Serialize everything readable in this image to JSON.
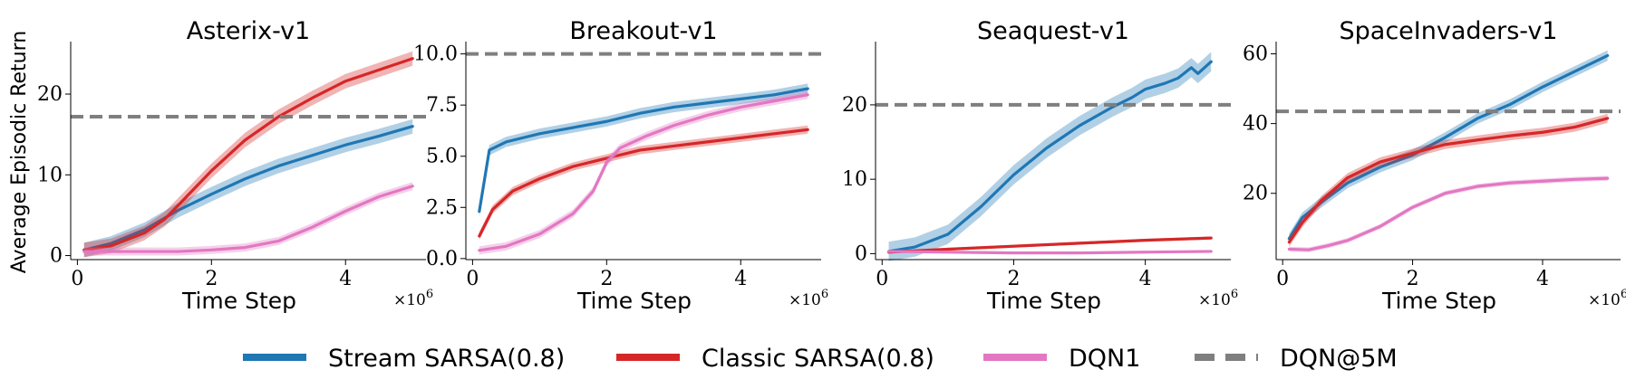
{
  "figure": {
    "ylabel": "Average Episodic Return",
    "xlabel": "Time Step",
    "x_multiplier_base": "×10",
    "x_multiplier_exp": "6"
  },
  "legend": [
    {
      "name": "Stream SARSA(0.8)",
      "color": "#1f77b4",
      "style": "solid"
    },
    {
      "name": "Classic SARSA(0.8)",
      "color": "#d62728",
      "style": "solid"
    },
    {
      "name": "DQN1",
      "color": "#e377c2",
      "style": "solid"
    },
    {
      "name": "DQN@5M",
      "color": "#7f7f7f",
      "style": "dashed"
    }
  ],
  "chart_data": [
    {
      "type": "line",
      "title": "Asterix-v1",
      "xlabel": "Time Step",
      "ylabel": "Average Episodic Return",
      "xlim": [
        -0.1,
        5.2
      ],
      "ylim": [
        -0.5,
        26.5
      ],
      "xticks": [
        0,
        2,
        4
      ],
      "xtick_labels": [
        "0",
        "2",
        "4"
      ],
      "yticks": [
        0,
        10,
        20
      ],
      "ytick_labels": [
        "0",
        "10",
        "20"
      ],
      "x_multiplier": "×10^6",
      "hline": {
        "name": "DQN@5M",
        "y": 17.2
      },
      "series": [
        {
          "name": "Stream SARSA(0.8)",
          "band": 0.9,
          "x": [
            0.1,
            0.5,
            1.0,
            1.5,
            2.0,
            2.5,
            3.0,
            3.5,
            4.0,
            4.5,
            5.0
          ],
          "y": [
            0.7,
            1.5,
            3.2,
            5.6,
            7.6,
            9.5,
            11.1,
            12.4,
            13.7,
            14.8,
            16.0
          ]
        },
        {
          "name": "Classic SARSA(0.8)",
          "band": 0.9,
          "x": [
            0.1,
            0.5,
            1.0,
            1.3,
            1.5,
            2.0,
            2.5,
            3.0,
            3.5,
            4.0,
            4.5,
            5.0
          ],
          "y": [
            0.7,
            1.2,
            2.8,
            4.5,
            6.2,
            10.5,
            14.3,
            17.2,
            19.5,
            21.6,
            23.0,
            24.4
          ]
        },
        {
          "name": "DQN1",
          "band": 0.5,
          "x": [
            0.1,
            0.5,
            1.0,
            1.5,
            2.0,
            2.5,
            3.0,
            3.5,
            4.0,
            4.5,
            5.0
          ],
          "y": [
            0.5,
            0.5,
            0.5,
            0.5,
            0.7,
            1.0,
            1.8,
            3.5,
            5.5,
            7.3,
            8.6
          ]
        }
      ]
    },
    {
      "type": "line",
      "title": "Breakout-v1",
      "xlabel": "Time Step",
      "ylabel": "",
      "xlim": [
        -0.1,
        5.2
      ],
      "ylim": [
        -0.05,
        10.6
      ],
      "xticks": [
        0,
        2,
        4
      ],
      "xtick_labels": [
        "0",
        "2",
        "4"
      ],
      "yticks": [
        0,
        2.5,
        5,
        7.5,
        10
      ],
      "ytick_labels": [
        "0.0",
        "2.5",
        "5.0",
        "7.5",
        "10.0"
      ],
      "x_multiplier": "×10^6",
      "hline": {
        "name": "DQN@5M",
        "y": 10.0
      },
      "series": [
        {
          "name": "Stream SARSA(0.8)",
          "band": 0.25,
          "x": [
            0.1,
            0.25,
            0.5,
            1.0,
            1.5,
            2.0,
            2.5,
            3.0,
            3.5,
            4.0,
            4.5,
            5.0
          ],
          "y": [
            2.3,
            5.3,
            5.7,
            6.1,
            6.4,
            6.7,
            7.1,
            7.4,
            7.6,
            7.8,
            8.0,
            8.3
          ]
        },
        {
          "name": "Classic SARSA(0.8)",
          "band": 0.2,
          "x": [
            0.1,
            0.3,
            0.6,
            1.0,
            1.5,
            2.0,
            2.5,
            3.0,
            3.5,
            4.0,
            4.5,
            5.0
          ],
          "y": [
            1.1,
            2.4,
            3.3,
            3.9,
            4.5,
            4.9,
            5.3,
            5.5,
            5.7,
            5.9,
            6.1,
            6.3
          ]
        },
        {
          "name": "DQN1",
          "band": 0.2,
          "x": [
            0.1,
            0.5,
            1.0,
            1.5,
            1.8,
            2.0,
            2.2,
            2.6,
            3.0,
            3.5,
            4.0,
            4.5,
            5.0
          ],
          "y": [
            0.4,
            0.6,
            1.2,
            2.2,
            3.3,
            4.7,
            5.4,
            6.0,
            6.5,
            7.0,
            7.4,
            7.7,
            8.0
          ]
        }
      ]
    },
    {
      "type": "line",
      "title": "Seaquest-v1",
      "xlabel": "Time Step",
      "ylabel": "",
      "xlim": [
        -0.1,
        5.3
      ],
      "ylim": [
        -0.8,
        28.5
      ],
      "xticks": [
        0,
        2,
        4
      ],
      "xtick_labels": [
        "0",
        "2",
        "4"
      ],
      "yticks": [
        0,
        10,
        20
      ],
      "ytick_labels": [
        "0",
        "10",
        "20"
      ],
      "x_multiplier": "×10^6",
      "hline": {
        "name": "DQN@5M",
        "y": 20.0
      },
      "series": [
        {
          "name": "Stream SARSA(0.8)",
          "band": 1.3,
          "x": [
            0.1,
            0.5,
            1.0,
            1.5,
            2.0,
            2.5,
            3.0,
            3.5,
            3.8,
            4.0,
            4.3,
            4.5,
            4.7,
            4.8,
            5.0
          ],
          "y": [
            0.3,
            0.9,
            2.6,
            6.3,
            10.6,
            14.2,
            17.2,
            19.7,
            21.0,
            22.1,
            22.9,
            23.6,
            25.0,
            24.2,
            25.8
          ]
        },
        {
          "name": "Classic SARSA(0.8)",
          "band": 0.2,
          "x": [
            0.1,
            1.0,
            2.0,
            3.0,
            4.0,
            5.0
          ],
          "y": [
            0.2,
            0.6,
            1.0,
            1.4,
            1.8,
            2.1
          ]
        },
        {
          "name": "DQN1",
          "band": 0.1,
          "x": [
            0.1,
            1.0,
            2.0,
            3.0,
            4.0,
            5.0
          ],
          "y": [
            0.3,
            0.2,
            0.1,
            0.1,
            0.2,
            0.3
          ]
        }
      ]
    },
    {
      "type": "line",
      "title": "SpaceInvaders-v1",
      "xlabel": "Time Step",
      "ylabel": "",
      "xlim": [
        -0.1,
        5.2
      ],
      "ylim": [
        1.0,
        63.5
      ],
      "xticks": [
        0,
        2,
        4
      ],
      "xtick_labels": [
        "0",
        "2",
        "4"
      ],
      "yticks": [
        20,
        40,
        60
      ],
      "ytick_labels": [
        "20",
        "40",
        "60"
      ],
      "x_multiplier": "×10^6",
      "hline": {
        "name": "DQN@5M",
        "y": 43.5
      },
      "series": [
        {
          "name": "Stream SARSA(0.8)",
          "band": 1.5,
          "x": [
            0.1,
            0.3,
            0.6,
            1.0,
            1.5,
            2.0,
            2.5,
            3.0,
            3.5,
            4.0,
            4.5,
            5.0
          ],
          "y": [
            7.0,
            13.0,
            17.5,
            23.0,
            27.5,
            31.0,
            36.0,
            41.5,
            45.5,
            50.5,
            55.0,
            59.5
          ]
        },
        {
          "name": "Classic SARSA(0.8)",
          "band": 1.3,
          "x": [
            0.1,
            0.3,
            0.6,
            1.0,
            1.5,
            2.0,
            2.5,
            3.0,
            3.5,
            4.0,
            4.5,
            5.0
          ],
          "y": [
            6.0,
            11.5,
            18.0,
            24.5,
            29.0,
            31.5,
            34.0,
            35.3,
            36.5,
            37.5,
            39.0,
            41.5
          ]
        },
        {
          "name": "DQN1",
          "band": 0.7,
          "x": [
            0.1,
            0.4,
            0.7,
            1.0,
            1.5,
            2.0,
            2.5,
            3.0,
            3.5,
            4.0,
            4.5,
            5.0
          ],
          "y": [
            4.0,
            3.8,
            5.0,
            6.5,
            10.5,
            16.0,
            20.0,
            22.0,
            23.0,
            23.5,
            24.0,
            24.3
          ]
        }
      ]
    }
  ]
}
